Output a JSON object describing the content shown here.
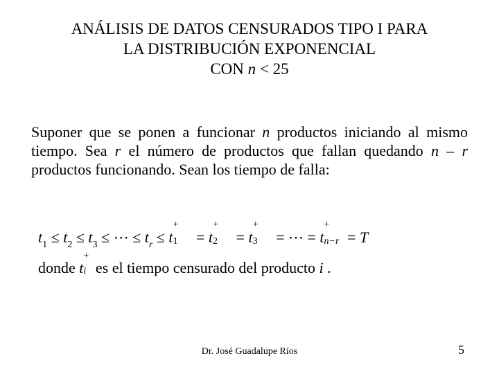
{
  "title": {
    "line1": "ANÁLISIS DE DATOS CENSURADOS TIPO I PARA",
    "line2_a": "LA DISTRIBUCIÓN EXPONENCIAL",
    "line3_a": "CON   ",
    "line3_n": "n",
    "line3_b": " < 25"
  },
  "body": {
    "p1_a": "Suponer que se ponen a funcionar ",
    "p1_n": "n",
    "p1_b": " productos iniciando al mismo tiempo. Sea ",
    "p1_r": "r",
    "p1_c": " el número de productos que fallan quedando  ",
    "p1_nr": "n – r",
    "p1_d": "  productos funcionando. Sean los tiempo de falla:"
  },
  "equation": {
    "t": "t",
    "le": " ≤ ",
    "eq": " = ",
    "ell": " ⋯ ",
    "T": "T",
    "plus": "+",
    "sub1": "1",
    "sub2": "2",
    "sub3": "3",
    "subr": "r",
    "subnr": "n−r"
  },
  "donde": {
    "a": "donde   ",
    "t": "t",
    "plus": "+",
    "subi": "i",
    "b": "  es el tiempo censurado del producto  ",
    "i": "i",
    "c": " ."
  },
  "footer": {
    "author": "Dr. José Guadalupe Ríos",
    "page": "5"
  },
  "colors": {
    "text": "#000000",
    "background": "#ffffff"
  }
}
